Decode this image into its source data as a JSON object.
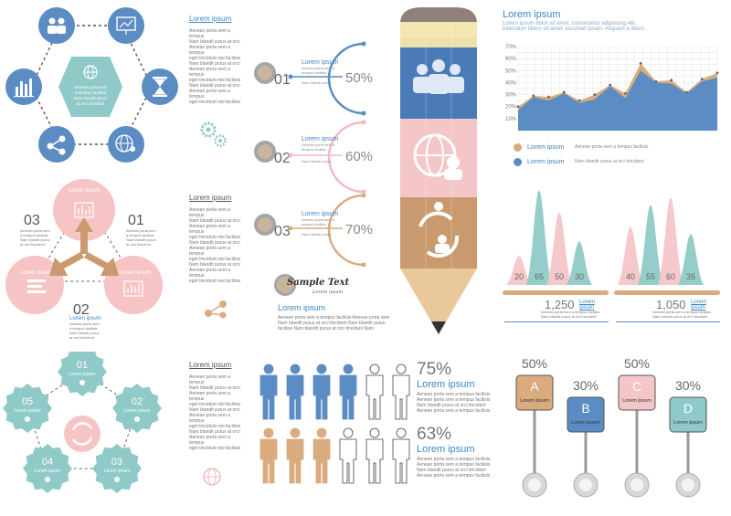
{
  "hexagon": {
    "icons": [
      "users-icon",
      "presentation-icon",
      "hourglass-icon",
      "globe-user-icon",
      "share-icon",
      "bar-chart-icon"
    ],
    "center_icon": "globe-icon",
    "center_lines": [
      "Aenean porta sem",
      "a tempus facilisis",
      "Nam blandit purus",
      "at orci tincidunt"
    ]
  },
  "text_column": {
    "title": "Lorem ipsum",
    "lines": [
      "Aenean porta sem a tempus",
      "Nam blandit purus at orci",
      "Aenean porta sem a tempus",
      "eget tincidunt nisi facilisis",
      "Nam blandit purus at orci",
      "Aenean porta sem a tempus",
      "eget tincidunt nisi facilisis",
      "Nam blandit purus at orci",
      "Aenean porta sem a tempus",
      "eget tincidunt nisi facilisis"
    ]
  },
  "steps": [
    {
      "num": "01",
      "title": "Lorem ipsum",
      "pct": "50%",
      "color": "#5b8cc4"
    },
    {
      "num": "02",
      "title": "Lorem ipsum",
      "pct": "60%",
      "color": "#f4b8c0"
    },
    {
      "num": "03",
      "title": "Lorem ipsum",
      "pct": "70%",
      "color": "#d9ab7e"
    }
  ],
  "steps_line": [
    "Aenean porta sem a",
    "tempus facilisis",
    "Nam blandit purus"
  ],
  "sample": {
    "title": "Sample Text",
    "subtitle": "Lorem ipsum"
  },
  "bottom_note": {
    "title": "Lorem ipsum",
    "lines": [
      "Aenean porta sem a tempus facilisis Aenean porta sem",
      "Nam blandit purus at orci tincidunt Nam blandit purus",
      "facilisis Nam blandit purus at orci tincidunt Nam"
    ]
  },
  "pencil": {
    "icons": [
      "people-group-icon",
      "globe-person-icon",
      "recycle-person-icon"
    ],
    "colors": [
      "#5b8cc4",
      "#f4c6c8",
      "#d9ab7e"
    ]
  },
  "area_chart": {
    "title": "Lorem ipsum",
    "subtitle": "Lorem ipsum dolor sit amet, consectetur adipiscing elit.",
    "subtitle2": "bibendum libero sit amet, euismod ipsum. Aliquam a libero",
    "legend": [
      {
        "label": "Lorem ipsum",
        "desc": "Aenean porta sem a tempus facilisis",
        "color": "#d9ab7e"
      },
      {
        "label": "Lorem ipsum",
        "desc": "Nam blandit purus at orci tincidunt",
        "color": "#5b8cc4"
      }
    ]
  },
  "chart_data": [
    {
      "type": "area",
      "ylim": [
        0,
        70
      ],
      "yticks": [
        "70%",
        "60%",
        "50%",
        "40%",
        "30%",
        "20%",
        "10%"
      ],
      "x": [
        1,
        2,
        3,
        4,
        5,
        6,
        7,
        8,
        9,
        10,
        11,
        12,
        13,
        14
      ],
      "series": [
        {
          "values": [
            20,
            29,
            28,
            32,
            25,
            30,
            38,
            31,
            56,
            41,
            42,
            32,
            43,
            48
          ]
        },
        {
          "values": [
            17,
            28,
            25,
            31,
            23,
            26,
            37,
            27,
            50,
            40,
            39,
            31,
            41,
            44
          ]
        }
      ]
    },
    {
      "type": "bar",
      "values": [
        20,
        65,
        50,
        30
      ],
      "labels": [
        "20",
        "65",
        "50",
        "30"
      ],
      "colors": [
        "#f4c6c8",
        "#8fcac8",
        "#f4c6c8",
        "#8fcac8"
      ]
    },
    {
      "type": "bar",
      "values": [
        40,
        55,
        60,
        35
      ],
      "labels": [
        "40",
        "55",
        "60",
        "35"
      ],
      "colors": [
        "#f4c6c8",
        "#8fcac8",
        "#f4c6c8",
        "#8fcac8"
      ]
    }
  ],
  "peak_stats": [
    {
      "value": "1,250",
      "label": "Lorem ipsum",
      "lines": [
        "Aenean porta sem a tempus facilisis",
        "Nam blandit purus at orci tincidunt"
      ]
    },
    {
      "value": "1,050",
      "label": "Lorem ipsum",
      "lines": [
        "Aenean porta sem a tempus facilisis",
        "Nam blandit purus at orci tincidunt"
      ]
    }
  ],
  "triad": {
    "nodes": [
      "Lorem ipsum",
      "Lorem ipsum",
      "Lorem ipsum"
    ],
    "numbers": [
      "03",
      "01",
      "02"
    ],
    "lines": [
      "Aenean porta sem",
      "a tempus facilisis",
      "Nam blandit purus",
      "at orci tincidunt"
    ]
  },
  "flower": {
    "items": [
      {
        "num": "01",
        "label": "Lorem ipsum"
      },
      {
        "num": "02",
        "label": "Lorem ipsum"
      },
      {
        "num": "03",
        "label": "Lorem ipsum"
      },
      {
        "num": "04",
        "label": "Lorem ipsum"
      },
      {
        "num": "05",
        "label": "Lorem ipsum"
      }
    ]
  },
  "people": {
    "stats": [
      {
        "value": "75%",
        "label": "Lorem ipsum",
        "filled": 4,
        "lines": [
          "Aenean porta sem a tempus facilisis",
          "Aenean porta sem a tempus facilisis",
          "Nam blandit purus at orci tincidunt",
          "Aenean porta sem a tempus facilisis"
        ]
      },
      {
        "value": "63%",
        "label": "Lorem ipsum",
        "filled": 3,
        "lines": [
          "Aenean porta sem a tempus facilisis",
          "Aenean porta sem a tempus facilisis",
          "Nam blandit purus at orci tincidunt",
          "Aenean porta sem a tempus facilisis"
        ]
      }
    ]
  },
  "pins": [
    {
      "pct": "50%",
      "letter": "A",
      "label": "Lorem ipsum",
      "color": "#d9ab7e"
    },
    {
      "pct": "30%",
      "letter": "B",
      "label": "Lorem ipsum",
      "color": "#5b8cc4"
    },
    {
      "pct": "50%",
      "letter": "C",
      "label": "Lorem ipsum",
      "color": "#f4c6c8"
    },
    {
      "pct": "30%",
      "letter": "D",
      "label": "Lorem ipsum",
      "color": "#8fcac8"
    }
  ]
}
